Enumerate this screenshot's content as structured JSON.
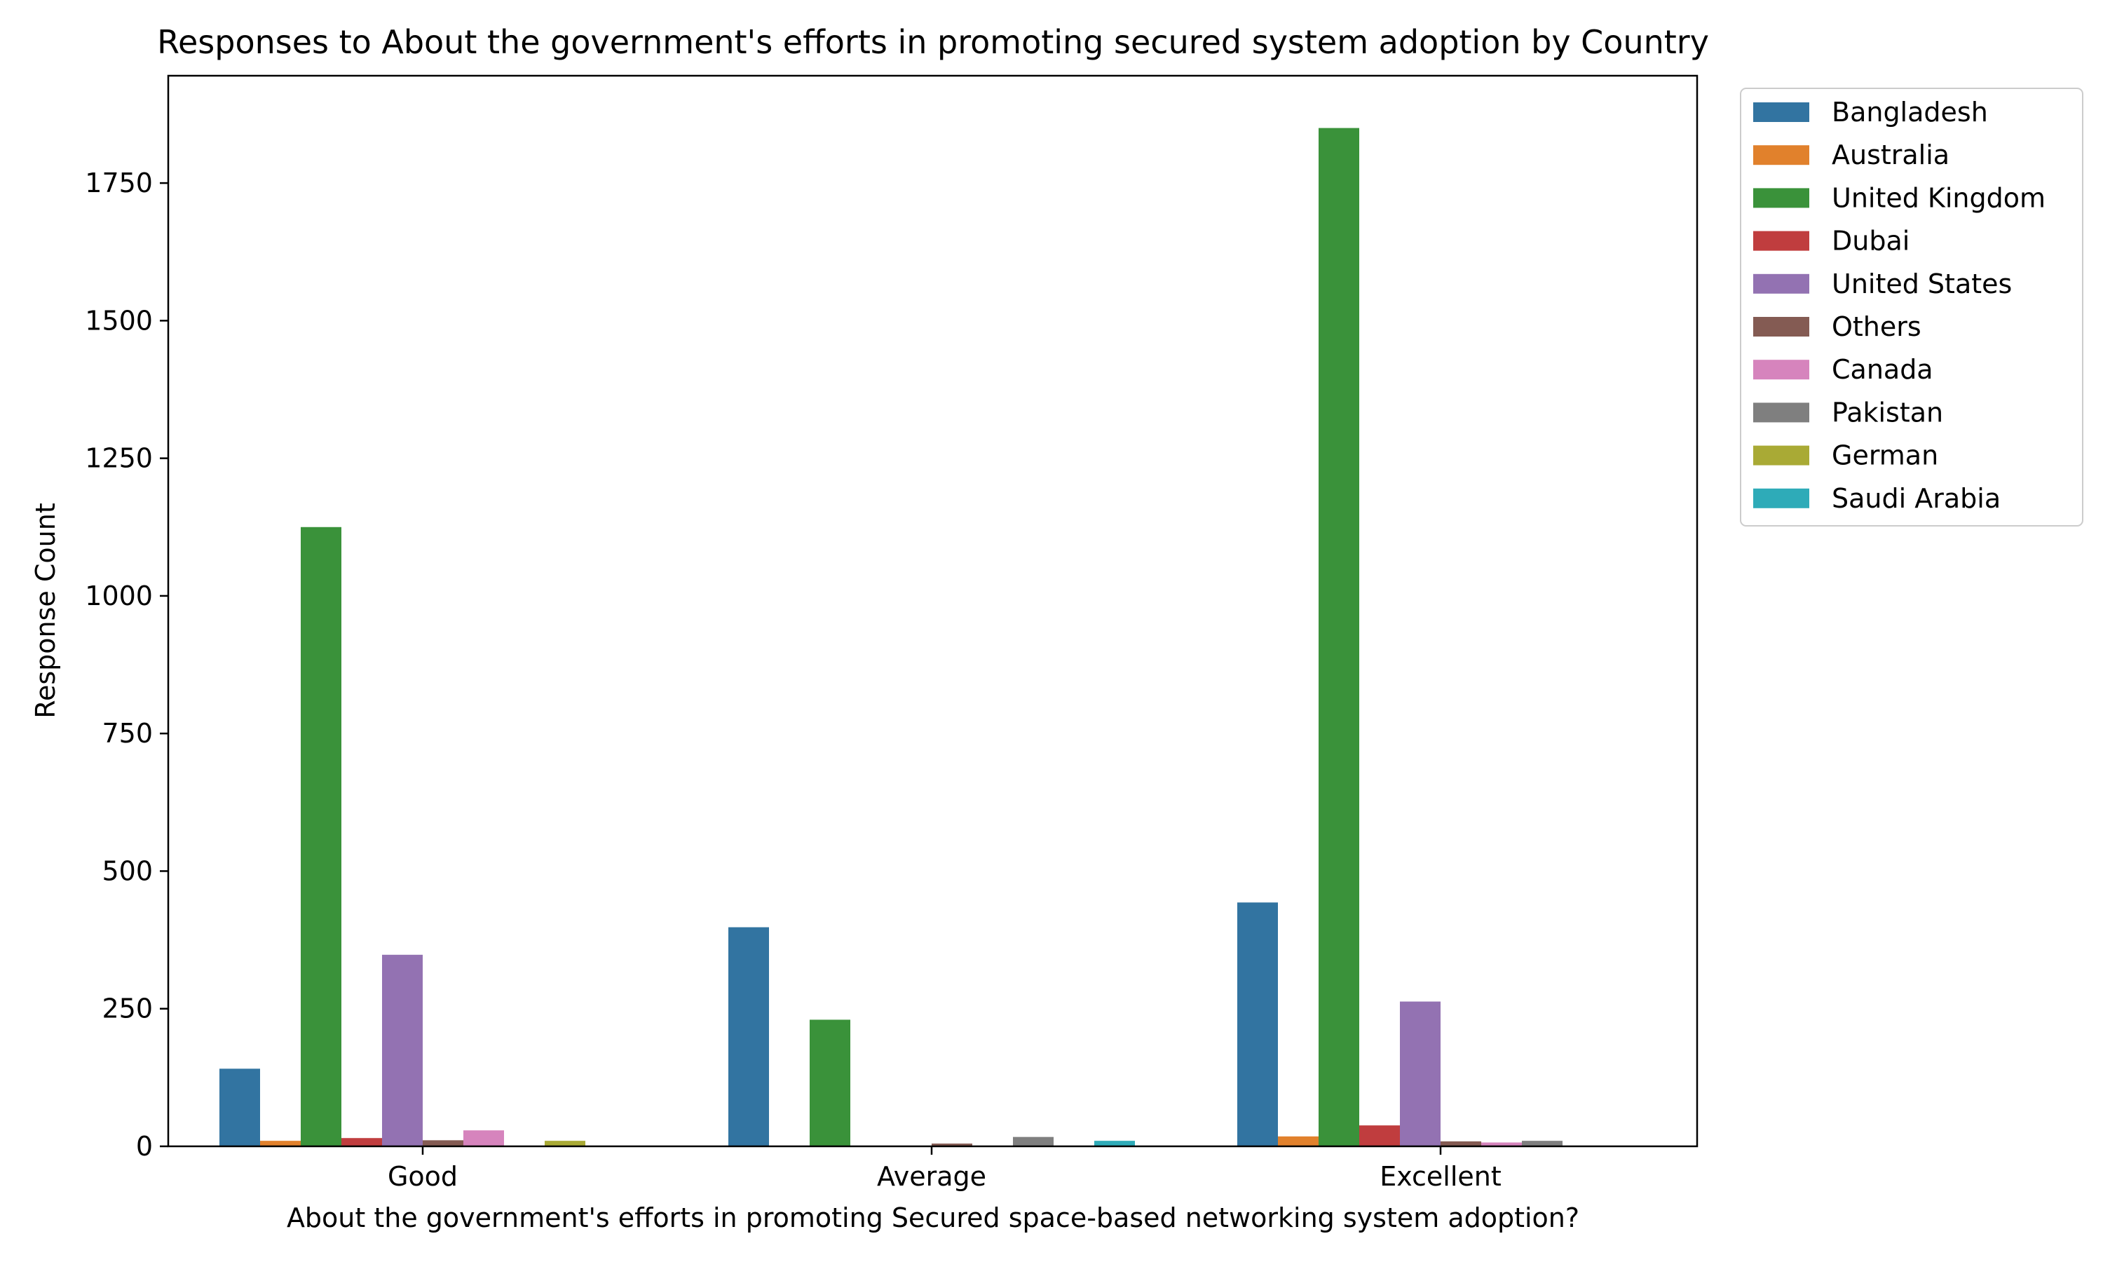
{
  "chart_data": {
    "type": "bar",
    "title": "Responses to About the government's efforts in promoting secured system adoption by Country",
    "xlabel": "About the government's efforts in promoting Secured space-based networking system adoption?",
    "ylabel": "Response Count",
    "categories": [
      "Good",
      "Average",
      "Excellent"
    ],
    "ylim": [
      0,
      1945
    ],
    "yticks": [
      0,
      250,
      500,
      750,
      1000,
      1250,
      1500,
      1750
    ],
    "ytick_labels": [
      "0",
      "250",
      "500",
      "750",
      "1000",
      "1250",
      "1500",
      "1750"
    ],
    "grid": false,
    "legend_position": "outside-top-right",
    "series": [
      {
        "name": "Bangladesh",
        "color": "#3274a1",
        "values": [
          141,
          398,
          443
        ]
      },
      {
        "name": "Australia",
        "color": "#e1812c",
        "values": [
          10,
          0,
          18
        ]
      },
      {
        "name": "United Kingdom",
        "color": "#3a923a",
        "values": [
          1125,
          230,
          1850
        ]
      },
      {
        "name": "Dubai",
        "color": "#c03d3e",
        "values": [
          15,
          0,
          38
        ]
      },
      {
        "name": "United States",
        "color": "#9372b2",
        "values": [
          348,
          0,
          263
        ]
      },
      {
        "name": "Others",
        "color": "#845b53",
        "values": [
          11,
          5,
          9
        ]
      },
      {
        "name": "Canada",
        "color": "#d684bd",
        "values": [
          29,
          0,
          7
        ]
      },
      {
        "name": "Pakistan",
        "color": "#7f7f7f",
        "values": [
          0,
          17,
          10
        ]
      },
      {
        "name": "German",
        "color": "#a9aa35",
        "values": [
          10,
          0,
          0
        ]
      },
      {
        "name": "Saudi Arabia",
        "color": "#2eabb8",
        "values": [
          0,
          10,
          0
        ]
      }
    ]
  }
}
